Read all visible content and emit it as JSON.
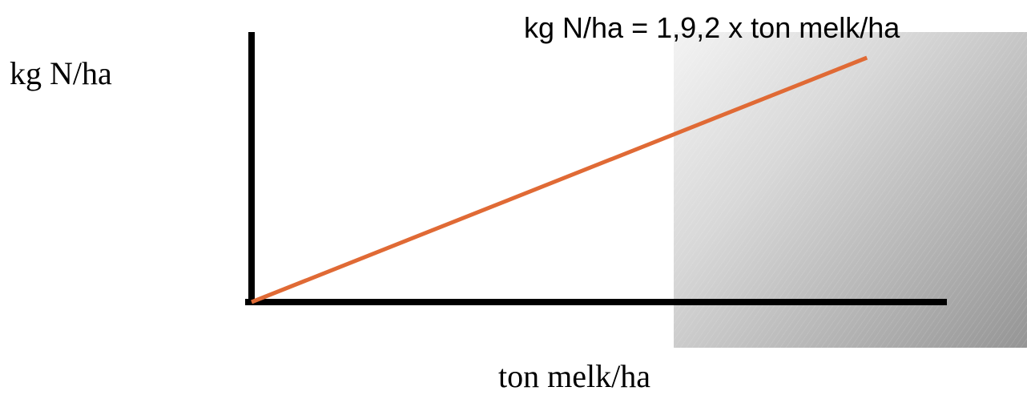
{
  "chart_data": {
    "type": "line",
    "title": "",
    "xlabel": "ton melk/ha",
    "ylabel": "kg N/ha",
    "annotation": "kg N/ha = 1,9,2 x ton melk/ha",
    "xlim": [
      0,
      1
    ],
    "ylim": [
      0,
      1
    ],
    "grid": false,
    "series": [
      {
        "x": [
          0,
          0.885
        ],
        "y": [
          0,
          0.905
        ],
        "color": "#e06a35"
      }
    ],
    "colors": {
      "axes": "#000000",
      "line": "#e06a35",
      "shaded_region": "#b4b4b4"
    }
  }
}
